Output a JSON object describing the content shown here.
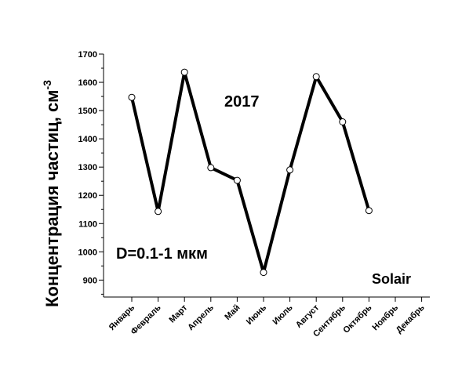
{
  "chart_data": {
    "type": "line",
    "ylabel": "Концентрация частиц, см",
    "ylabel_superscript": "-3",
    "ylim": [
      840,
      1700
    ],
    "yticks": [
      900,
      1000,
      1100,
      1200,
      1300,
      1400,
      1500,
      1600,
      1700
    ],
    "categories": [
      "Январь",
      "Февраль",
      "Март",
      "Апрель",
      "Май",
      "Июнь",
      "Июль",
      "Август",
      "Сентябрь",
      "Октябрь",
      "Ноябрь",
      "Декабрь"
    ],
    "series": [
      {
        "values": [
          1547,
          1143,
          1636,
          1298,
          1253,
          927,
          1290,
          1620,
          1460,
          1146,
          null,
          null
        ],
        "color": "#000000"
      }
    ],
    "annotations": {
      "year": "2017",
      "size_range": "D=0.1-1 мкм",
      "source": "Solair"
    },
    "grid": false
  }
}
